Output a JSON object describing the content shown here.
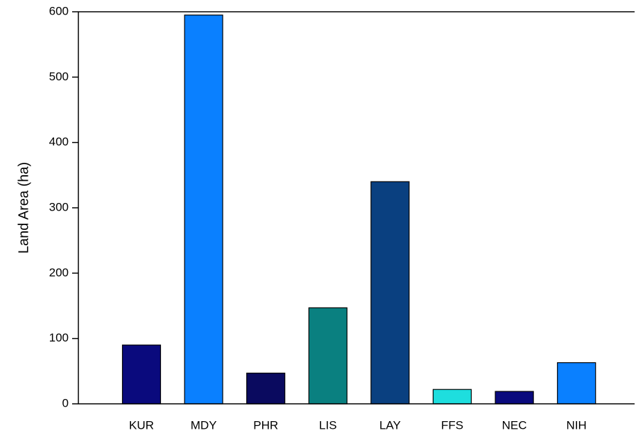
{
  "chart_data": {
    "type": "bar",
    "y_label": "Land Area (ha)",
    "categories": [
      "KUR",
      "MDY",
      "PHR",
      "LIS",
      "LAY",
      "FFS",
      "NEC",
      "NIH"
    ],
    "values": [
      90,
      595,
      47,
      147,
      340,
      22,
      19,
      63
    ],
    "colors": [
      "#0a0a7d",
      "#0a80ff",
      "#0a0a5f",
      "#0a8080",
      "#0a4080",
      "#1edede",
      "#0a0a7d",
      "#0a80ff"
    ],
    "ylim": [
      0,
      600
    ],
    "yticks": [
      0,
      100,
      200,
      300,
      400,
      500,
      600
    ],
    "grid": false
  }
}
